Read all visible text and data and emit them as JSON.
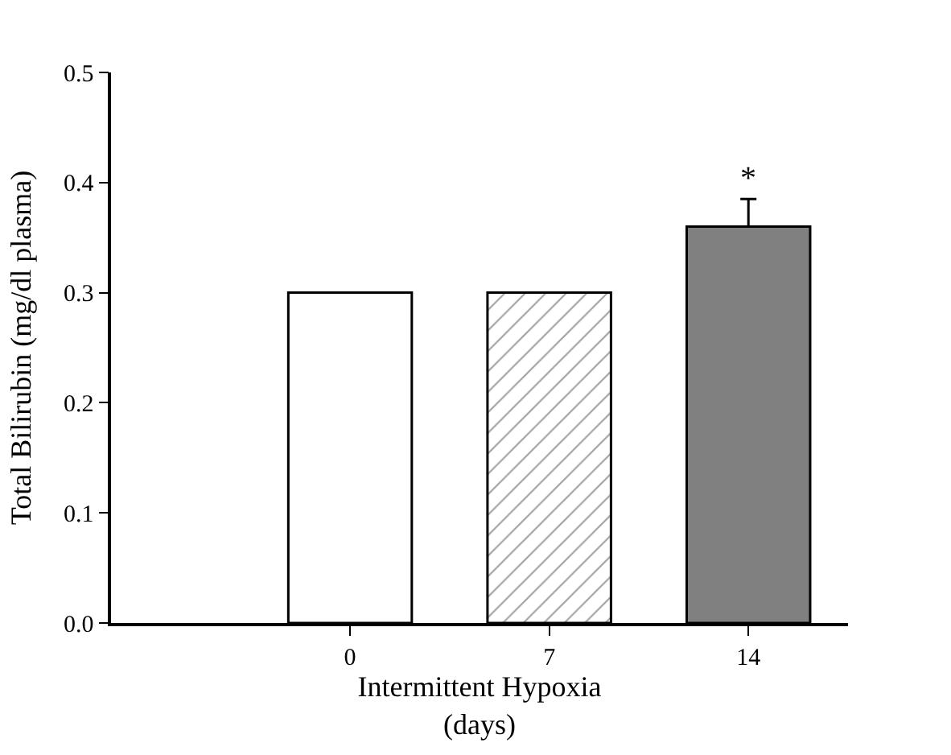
{
  "chart_data": {
    "type": "bar",
    "xlabel": "Intermittent Hypoxia\n(days)",
    "ylabel": "Total Bilirubin (mg/dl plasma)",
    "categories": [
      "0",
      "7",
      "14"
    ],
    "values": [
      0.3,
      0.3,
      0.36
    ],
    "colors": [
      "#ffffff",
      "#000000",
      "#808080"
    ],
    "errors": [
      null,
      null,
      [
        0.36,
        0.385
      ]
    ],
    "ylim": [
      0,
      0.5
    ],
    "yticks": [
      {
        "value": 0,
        "label": "0.0"
      },
      {
        "value": 0.1,
        "label": "0.1"
      },
      {
        "value": 0.2,
        "label": "0.2"
      },
      {
        "value": 0.3,
        "label": "0.3"
      },
      {
        "value": 0.4,
        "label": "0.4"
      },
      {
        "value": 0.5,
        "label": "0.5"
      }
    ],
    "annotations": [
      "*"
    ]
  }
}
